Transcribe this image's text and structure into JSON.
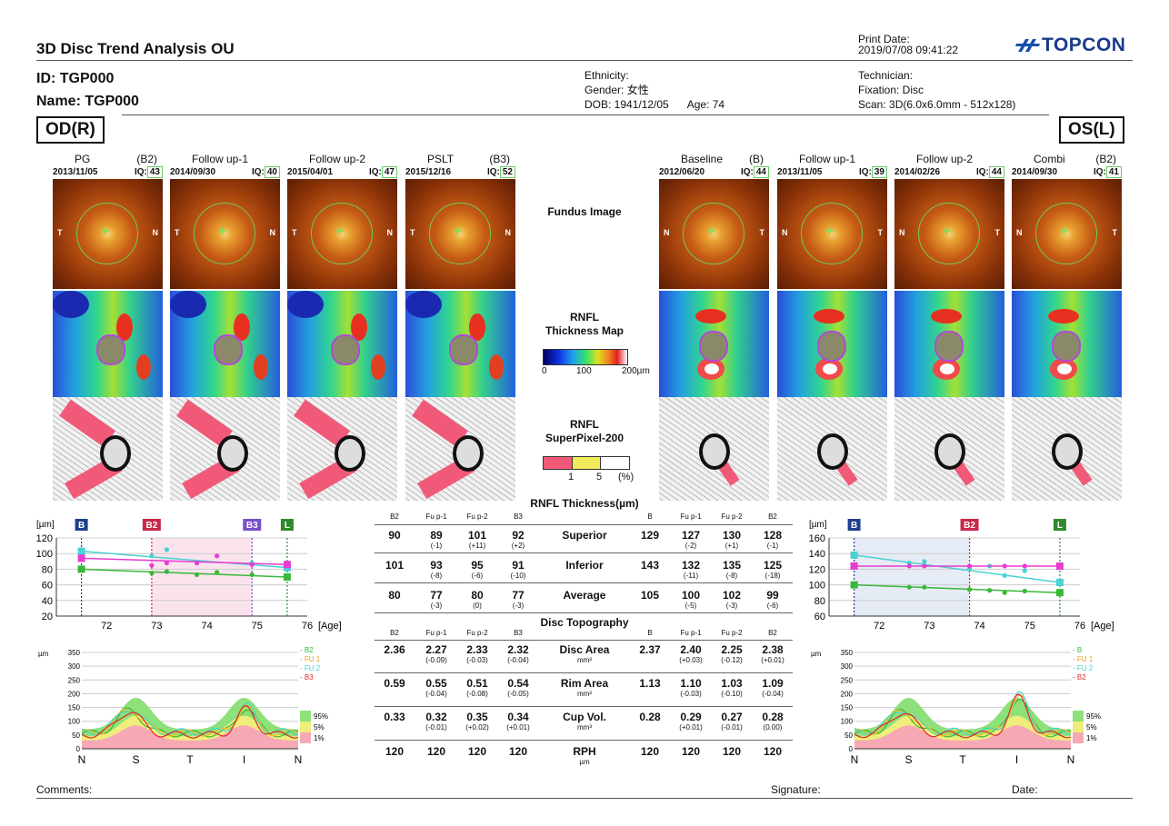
{
  "header": {
    "title": "3D Disc Trend Analysis OU",
    "print_date_label": "Print Date:",
    "print_date": "2019/07/08 09:41:22",
    "brand": "TOPCON",
    "id": "ID: TGP000",
    "name": "Name: TGP000",
    "ethnicity": "Ethnicity:",
    "gender": "Gender: 女性",
    "dob": "DOB: 1941/12/05",
    "age": "Age: 74",
    "technician": "Technician:",
    "fixation": "Fixation: Disc",
    "scan": "Scan: 3D(6.0x6.0mm - 512x128)"
  },
  "eyes": {
    "od": "OD(R)",
    "os": "OS(L)"
  },
  "od_columns": [
    {
      "name": "PG",
      "tag": "(B2)",
      "date": "2013/11/05",
      "iq_label": "IQ:",
      "iq": "43",
      "left": "T",
      "right": "N"
    },
    {
      "name": "Follow up-1",
      "tag": "",
      "date": "2014/09/30",
      "iq_label": "IQ:",
      "iq": "40",
      "left": "T",
      "right": "N"
    },
    {
      "name": "Follow up-2",
      "tag": "",
      "date": "2015/04/01",
      "iq_label": "IQ:",
      "iq": "47",
      "left": "T",
      "right": "N"
    },
    {
      "name": "PSLT",
      "tag": "(B3)",
      "date": "2015/12/16",
      "iq_label": "IQ:",
      "iq": "52",
      "left": "T",
      "right": "N"
    }
  ],
  "os_columns": [
    {
      "name": "Baseline",
      "tag": "(B)",
      "date": "2012/06/20",
      "iq_label": "IQ:",
      "iq": "44",
      "left": "N",
      "right": "T"
    },
    {
      "name": "Follow up-1",
      "tag": "",
      "date": "2013/11/05",
      "iq_label": "IQ:",
      "iq": "39",
      "left": "N",
      "right": "T"
    },
    {
      "name": "Follow up-2",
      "tag": "",
      "date": "2014/02/26",
      "iq_label": "IQ:",
      "iq": "44",
      "left": "N",
      "right": "T"
    },
    {
      "name": "Combi",
      "tag": "(B2)",
      "date": "2014/09/30",
      "iq_label": "IQ:",
      "iq": "41",
      "left": "N",
      "right": "T"
    }
  ],
  "center": {
    "fundus": "Fundus Image",
    "rnfl_map_1": "RNFL",
    "rnfl_map_2": "Thickness Map",
    "scale_0": "0",
    "scale_100": "100",
    "scale_200": "200µm",
    "super_1": "RNFL",
    "super_2": "SuperPixel-200",
    "sp_1": "1",
    "sp_5": "5",
    "sp_pct": "(%)"
  },
  "table": {
    "rnfl_title": "RNFL Thickness(µm)",
    "topo_title": "Disc Topography",
    "od_hdr": [
      "B2",
      "Fu p-1",
      "Fu p-2",
      "B3"
    ],
    "os_hdr": [
      "B",
      "Fu p-1",
      "Fu p-2",
      "B2"
    ],
    "rnfl_rows": [
      {
        "name": "Superior",
        "unit": "",
        "od": [
          [
            "90",
            ""
          ],
          [
            "89",
            "(-1)"
          ],
          [
            "101",
            "(+11)"
          ],
          [
            "92",
            "(+2)"
          ]
        ],
        "os": [
          [
            "129",
            ""
          ],
          [
            "127",
            "(-2)"
          ],
          [
            "130",
            "(+1)"
          ],
          [
            "128",
            "(-1)"
          ]
        ]
      },
      {
        "name": "Inferior",
        "unit": "",
        "od": [
          [
            "101",
            ""
          ],
          [
            "93",
            "(-8)"
          ],
          [
            "95",
            "(-6)"
          ],
          [
            "91",
            "(-10)"
          ]
        ],
        "os": [
          [
            "143",
            ""
          ],
          [
            "132",
            "(-11)"
          ],
          [
            "135",
            "(-8)"
          ],
          [
            "125",
            "(-18)"
          ]
        ]
      },
      {
        "name": "Average",
        "unit": "",
        "od": [
          [
            "80",
            ""
          ],
          [
            "77",
            "(-3)"
          ],
          [
            "80",
            "(0)"
          ],
          [
            "77",
            "(-3)"
          ]
        ],
        "os": [
          [
            "105",
            ""
          ],
          [
            "100",
            "(-5)"
          ],
          [
            "102",
            "(-3)"
          ],
          [
            "99",
            "(-6)"
          ]
        ]
      }
    ],
    "topo_rows": [
      {
        "name": "Disc Area",
        "unit": "mm²",
        "od": [
          [
            "2.36",
            ""
          ],
          [
            "2.27",
            "(-0.09)"
          ],
          [
            "2.33",
            "(-0.03)"
          ],
          [
            "2.32",
            "(-0.04)"
          ]
        ],
        "os": [
          [
            "2.37",
            ""
          ],
          [
            "2.40",
            "(+0.03)"
          ],
          [
            "2.25",
            "(-0.12)"
          ],
          [
            "2.38",
            "(+0.01)"
          ]
        ]
      },
      {
        "name": "Rim Area",
        "unit": "mm²",
        "od": [
          [
            "0.59",
            ""
          ],
          [
            "0.55",
            "(-0.04)"
          ],
          [
            "0.51",
            "(-0.08)"
          ],
          [
            "0.54",
            "(-0.05)"
          ]
        ],
        "os": [
          [
            "1.13",
            ""
          ],
          [
            "1.10",
            "(-0.03)"
          ],
          [
            "1.03",
            "(-0.10)"
          ],
          [
            "1.09",
            "(-0.04)"
          ]
        ]
      },
      {
        "name": "Cup Vol.",
        "unit": "mm³",
        "od": [
          [
            "0.33",
            ""
          ],
          [
            "0.32",
            "(-0.01)"
          ],
          [
            "0.35",
            "(+0.02)"
          ],
          [
            "0.34",
            "(+0.01)"
          ]
        ],
        "os": [
          [
            "0.28",
            ""
          ],
          [
            "0.29",
            "(+0.01)"
          ],
          [
            "0.27",
            "(-0.01)"
          ],
          [
            "0.28",
            "(0.00)"
          ]
        ]
      },
      {
        "name": "RPH",
        "unit": "µm",
        "od": [
          [
            "120",
            ""
          ],
          [
            "120",
            ""
          ],
          [
            "120",
            ""
          ],
          [
            "120",
            ""
          ]
        ],
        "os": [
          [
            "120",
            ""
          ],
          [
            "120",
            ""
          ],
          [
            "120",
            ""
          ],
          [
            "120",
            ""
          ]
        ]
      }
    ]
  },
  "chart_data": [
    {
      "type": "line",
      "eye": "OD",
      "ylabel": "[µm]",
      "xlabel": "[Age]",
      "ylim": [
        20,
        120
      ],
      "xlim": [
        71,
        76
      ],
      "yticks": [
        20,
        40,
        60,
        80,
        100,
        120
      ],
      "xticks": [
        72,
        73,
        74,
        75,
        76
      ],
      "markers": [
        {
          "label": "B",
          "x": 71.5,
          "color": "#1f3f8f"
        },
        {
          "label": "B2",
          "x": 72.9,
          "color": "#c8284a"
        },
        {
          "label": "B3",
          "x": 74.9,
          "color": "#7a4fc8"
        },
        {
          "label": "L",
          "x": 75.6,
          "color": "#2f8a2f"
        }
      ],
      "series": [
        {
          "color": "#48d2d2",
          "points": [
            [
              71.5,
              103
            ],
            [
              72.9,
              97
            ],
            [
              73.2,
              105
            ],
            [
              73.8,
              88
            ],
            [
              74.9,
              88
            ],
            [
              75.6,
              82
            ]
          ]
        },
        {
          "color": "#e83bd2",
          "points": [
            [
              71.5,
              94
            ],
            [
              72.9,
              85
            ],
            [
              73.2,
              88
            ],
            [
              73.8,
              88
            ],
            [
              74.2,
              97
            ],
            [
              74.9,
              86
            ],
            [
              75.6,
              86
            ]
          ]
        },
        {
          "color": "#38b838",
          "points": [
            [
              71.5,
              80
            ],
            [
              72.9,
              75
            ],
            [
              73.2,
              77
            ],
            [
              73.8,
              73
            ],
            [
              74.2,
              76
            ],
            [
              74.9,
              73
            ],
            [
              75.6,
              70
            ]
          ]
        }
      ]
    },
    {
      "type": "line",
      "eye": "OS",
      "ylabel": "[µm]",
      "xlabel": "[Age]",
      "ylim": [
        60,
        160
      ],
      "xlim": [
        71,
        76
      ],
      "yticks": [
        60,
        80,
        100,
        120,
        140,
        160
      ],
      "xticks": [
        72,
        73,
        74,
        75,
        76
      ],
      "markers": [
        {
          "label": "B",
          "x": 71.5,
          "color": "#1f3f8f"
        },
        {
          "label": "B2",
          "x": 73.8,
          "color": "#c8284a"
        },
        {
          "label": "L",
          "x": 75.6,
          "color": "#2f8a2f"
        }
      ],
      "series": [
        {
          "color": "#48d2d2",
          "points": [
            [
              71.5,
              138
            ],
            [
              72.6,
              128
            ],
            [
              72.9,
              130
            ],
            [
              73.8,
              121
            ],
            [
              74.2,
              124
            ],
            [
              74.5,
              112
            ],
            [
              74.9,
              118
            ],
            [
              75.6,
              103
            ]
          ]
        },
        {
          "color": "#e83bd2",
          "points": [
            [
              71.5,
              124
            ],
            [
              72.6,
              124
            ],
            [
              72.9,
              124
            ],
            [
              73.8,
              124
            ],
            [
              74.5,
              124
            ],
            [
              74.9,
              124
            ],
            [
              75.6,
              124
            ]
          ]
        },
        {
          "color": "#38b838",
          "points": [
            [
              71.5,
              100
            ],
            [
              72.6,
              97
            ],
            [
              72.9,
              97
            ],
            [
              73.8,
              94
            ],
            [
              74.2,
              93
            ],
            [
              74.5,
              90
            ],
            [
              74.9,
              92
            ],
            [
              75.6,
              90
            ]
          ]
        }
      ]
    },
    {
      "type": "area",
      "eye": "OD",
      "ylabel": "µm",
      "ylim": [
        0,
        350
      ],
      "yticks": [
        0,
        50,
        100,
        150,
        200,
        250,
        300,
        350
      ],
      "categories": [
        "N",
        "S",
        "T",
        "I",
        "N"
      ],
      "legend": [
        "B2",
        "FU 1",
        "FU 2",
        "B3"
      ],
      "bands": [
        "95%",
        "5%",
        "1%"
      ]
    },
    {
      "type": "area",
      "eye": "OS",
      "ylabel": "µm",
      "ylim": [
        0,
        350
      ],
      "yticks": [
        0,
        50,
        100,
        150,
        200,
        250,
        300,
        350
      ],
      "categories": [
        "N",
        "S",
        "T",
        "I",
        "N"
      ],
      "legend": [
        "B",
        "FU 1",
        "FU 2",
        "B2"
      ],
      "bands": [
        "95%",
        "5%",
        "1%"
      ]
    }
  ],
  "footer": {
    "comments": "Comments:",
    "signature": "Signature:",
    "date": "Date:"
  }
}
